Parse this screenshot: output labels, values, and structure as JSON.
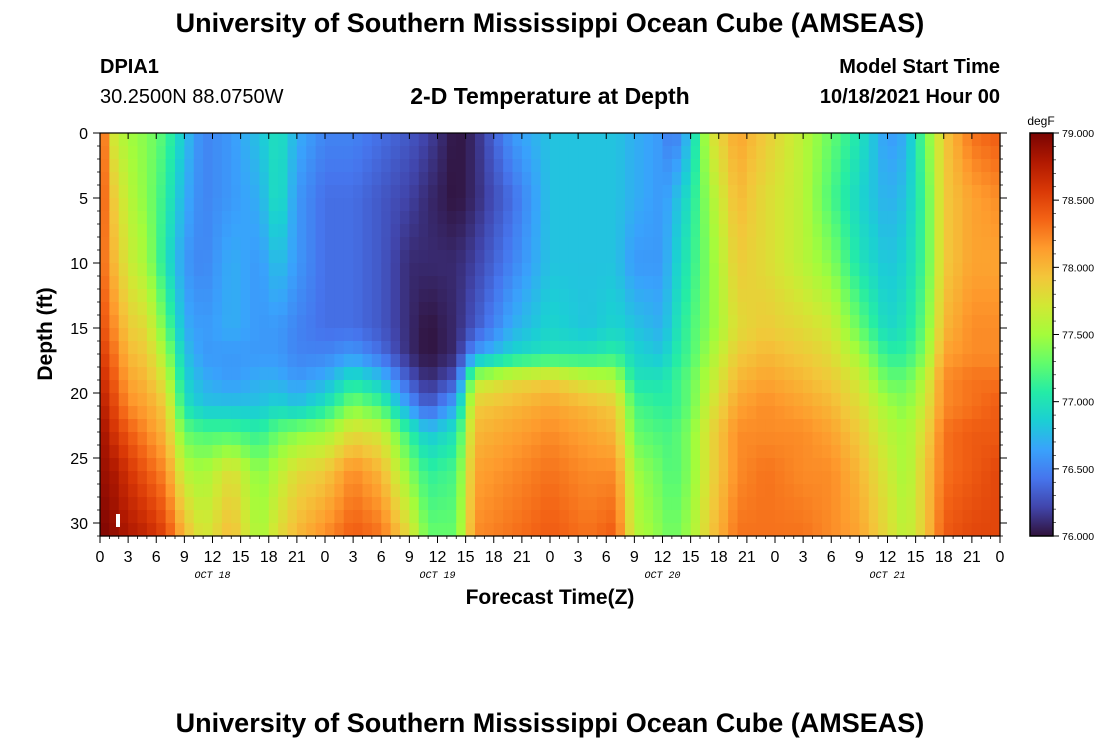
{
  "header": {
    "title": "University of Southern Mississippi Ocean Cube (AMSEAS)",
    "station_id": "DPIA1",
    "coordinates": "30.2500N  88.0750W",
    "subtitle": "2-D Temperature at Depth",
    "model_start_label": "Model Start Time",
    "model_start_value": "10/18/2021 Hour 00"
  },
  "footer": {
    "title": "University of Southern Mississippi Ocean Cube (AMSEAS)"
  },
  "chart_data": {
    "type": "heatmap",
    "title": "2-D Temperature at Depth",
    "xlabel": "Forecast Time(Z)",
    "ylabel": "Depth (ft)",
    "x_hours_range": [
      0,
      96
    ],
    "x_tick_step_hours": 3,
    "x_tick_labels": [
      "0",
      "3",
      "6",
      "9",
      "12",
      "15",
      "18",
      "21",
      "0",
      "3",
      "6",
      "9",
      "12",
      "15",
      "18",
      "21",
      "0",
      "3",
      "6",
      "9",
      "12",
      "15",
      "18",
      "21",
      "0",
      "3",
      "6",
      "9",
      "12",
      "15",
      "18",
      "21",
      "0"
    ],
    "date_labels": [
      {
        "label": "OCT 18",
        "hour": 12
      },
      {
        "label": "OCT 19",
        "hour": 36
      },
      {
        "label": "OCT 20",
        "hour": 60
      },
      {
        "label": "OCT 21",
        "hour": 84
      }
    ],
    "ylim": [
      0,
      31
    ],
    "y_inverted": true,
    "y_ticks": [
      0,
      5,
      10,
      15,
      20,
      25,
      30
    ],
    "colorbar": {
      "units": "degF",
      "min": 76.0,
      "max": 79.0,
      "tick_values": [
        76.0,
        76.5,
        77.0,
        77.5,
        78.0,
        78.5,
        79.0
      ],
      "tick_labels": [
        "76.000",
        "76.500",
        "77.000",
        "77.500",
        "78.000",
        "78.500",
        "79.000"
      ],
      "colors": [
        "#30123b",
        "#4145ab",
        "#4675ed",
        "#39a2fc",
        "#1bcfd4",
        "#24eca6",
        "#61fc6c",
        "#a4fc3b",
        "#d1e834",
        "#f3c63a",
        "#fe9b2d",
        "#f36315",
        "#d93806",
        "#b11901",
        "#7a0402"
      ]
    },
    "temperature_field": {
      "depths_ft": [
        0,
        5,
        10,
        15,
        17,
        19,
        21,
        23,
        26,
        31
      ],
      "rows": [
        {
          "hour": 0,
          "t": [
            78.5,
            78.5,
            78.4,
            78.5,
            78.6,
            78.7,
            78.8,
            78.9,
            78.9,
            79.0
          ]
        },
        {
          "hour": 1.5,
          "t": [
            77.7,
            77.9,
            78.0,
            78.2,
            78.3,
            78.4,
            78.5,
            78.6,
            78.8,
            78.9
          ]
        },
        {
          "hour": 3,
          "t": [
            77.5,
            77.6,
            77.7,
            77.9,
            78.0,
            78.1,
            78.2,
            78.4,
            78.6,
            78.8
          ]
        },
        {
          "hour": 5,
          "t": [
            77.4,
            77.4,
            77.5,
            77.8,
            77.9,
            78.0,
            78.1,
            78.2,
            78.4,
            78.7
          ]
        },
        {
          "hour": 7,
          "t": [
            77.2,
            77.1,
            77.0,
            77.3,
            77.5,
            77.7,
            77.9,
            78.0,
            78.2,
            78.5
          ]
        },
        {
          "hour": 9,
          "t": [
            76.8,
            76.7,
            76.6,
            76.7,
            76.8,
            76.9,
            77.0,
            77.3,
            77.6,
            78.0
          ]
        },
        {
          "hour": 11,
          "t": [
            76.5,
            76.5,
            76.5,
            76.6,
            76.6,
            76.7,
            76.8,
            77.2,
            77.5,
            77.7
          ]
        },
        {
          "hour": 14,
          "t": [
            76.6,
            76.6,
            76.7,
            76.7,
            76.6,
            76.6,
            76.8,
            77.2,
            77.8,
            78.0
          ]
        },
        {
          "hour": 17,
          "t": [
            76.8,
            76.7,
            76.6,
            76.6,
            76.6,
            76.7,
            76.8,
            77.1,
            77.4,
            77.5
          ]
        },
        {
          "hour": 19,
          "t": [
            77.0,
            77.0,
            76.8,
            76.6,
            76.6,
            76.7,
            76.9,
            77.3,
            77.6,
            77.8
          ]
        },
        {
          "hour": 21,
          "t": [
            76.7,
            76.6,
            76.6,
            76.5,
            76.5,
            76.6,
            76.8,
            77.4,
            77.8,
            78.0
          ]
        },
        {
          "hour": 24,
          "t": [
            76.5,
            76.4,
            76.4,
            76.4,
            76.5,
            76.7,
            77.0,
            77.5,
            77.9,
            78.2
          ]
        },
        {
          "hour": 27,
          "t": [
            76.5,
            76.4,
            76.4,
            76.4,
            76.6,
            77.0,
            77.4,
            77.8,
            78.2,
            78.4
          ]
        },
        {
          "hour": 30,
          "t": [
            76.4,
            76.3,
            76.3,
            76.3,
            76.4,
            76.8,
            77.2,
            77.7,
            78.0,
            78.3
          ]
        },
        {
          "hour": 33,
          "t": [
            76.3,
            76.2,
            76.1,
            76.1,
            76.1,
            76.3,
            76.6,
            77.1,
            77.4,
            77.8
          ]
        },
        {
          "hour": 35,
          "t": [
            76.2,
            76.1,
            76.1,
            76.0,
            76.0,
            76.1,
            76.3,
            76.8,
            77.1,
            77.3
          ]
        },
        {
          "hour": 38,
          "t": [
            76.0,
            76.0,
            76.1,
            76.1,
            76.1,
            76.3,
            76.7,
            77.0,
            77.2,
            77.3
          ]
        },
        {
          "hour": 40,
          "t": [
            76.1,
            76.1,
            76.2,
            76.3,
            76.6,
            77.6,
            77.9,
            78.0,
            78.1,
            78.2
          ]
        },
        {
          "hour": 44,
          "t": [
            76.6,
            76.4,
            76.5,
            76.7,
            76.9,
            77.8,
            78.0,
            78.1,
            78.2,
            78.3
          ]
        },
        {
          "hour": 48,
          "t": [
            76.8,
            76.8,
            76.8,
            76.9,
            77.0,
            77.9,
            78.1,
            78.2,
            78.3,
            78.4
          ]
        },
        {
          "hour": 52,
          "t": [
            76.8,
            76.8,
            76.8,
            76.8,
            77.0,
            77.7,
            78.0,
            78.1,
            78.2,
            78.3
          ]
        },
        {
          "hour": 55,
          "t": [
            76.8,
            76.8,
            76.8,
            76.9,
            77.1,
            77.6,
            77.9,
            78.0,
            78.2,
            78.4
          ]
        },
        {
          "hour": 57,
          "t": [
            76.7,
            76.7,
            76.6,
            76.8,
            76.9,
            77.0,
            77.2,
            77.3,
            77.5,
            77.6
          ]
        },
        {
          "hour": 60,
          "t": [
            76.6,
            76.6,
            76.6,
            76.7,
            76.8,
            77.0,
            77.1,
            77.2,
            77.3,
            77.4
          ]
        },
        {
          "hour": 61,
          "t": [
            76.4,
            76.7,
            76.8,
            76.9,
            77.0,
            77.1,
            77.1,
            77.2,
            77.2,
            77.3
          ]
        },
        {
          "hour": 63,
          "t": [
            76.8,
            77.0,
            77.1,
            77.2,
            77.2,
            77.3,
            77.3,
            77.4,
            77.4,
            77.5
          ]
        },
        {
          "hour": 65,
          "t": [
            77.7,
            77.5,
            77.4,
            77.4,
            77.5,
            77.6,
            77.7,
            77.8,
            77.8,
            77.9
          ]
        },
        {
          "hour": 68,
          "t": [
            78.1,
            78.0,
            77.9,
            77.8,
            77.9,
            78.0,
            78.1,
            78.2,
            78.2,
            78.3
          ]
        },
        {
          "hour": 71,
          "t": [
            77.9,
            77.8,
            77.8,
            77.9,
            78.0,
            78.1,
            78.2,
            78.2,
            78.3,
            78.3
          ]
        },
        {
          "hour": 75,
          "t": [
            77.6,
            77.6,
            77.6,
            77.8,
            77.9,
            78.0,
            78.1,
            78.2,
            78.2,
            78.3
          ]
        },
        {
          "hour": 78,
          "t": [
            77.3,
            77.2,
            77.4,
            77.7,
            77.8,
            77.9,
            78.0,
            78.1,
            78.2,
            78.2
          ]
        },
        {
          "hour": 81,
          "t": [
            77.0,
            76.9,
            77.0,
            77.3,
            77.5,
            77.7,
            77.8,
            77.9,
            78.0,
            78.1
          ]
        },
        {
          "hour": 84,
          "t": [
            76.6,
            76.7,
            76.8,
            76.9,
            77.1,
            77.3,
            77.5,
            77.6,
            77.7,
            77.8
          ]
        },
        {
          "hour": 86,
          "t": [
            76.7,
            76.8,
            76.9,
            77.0,
            77.1,
            77.3,
            77.4,
            77.5,
            77.5,
            77.6
          ]
        },
        {
          "hour": 88,
          "t": [
            77.3,
            77.2,
            77.2,
            77.3,
            77.4,
            77.6,
            77.7,
            77.8,
            77.9,
            77.9
          ]
        },
        {
          "hour": 90,
          "t": [
            77.9,
            77.9,
            77.9,
            78.0,
            78.1,
            78.2,
            78.2,
            78.3,
            78.3,
            78.4
          ]
        },
        {
          "hour": 93,
          "t": [
            78.3,
            78.1,
            78.1,
            78.2,
            78.2,
            78.3,
            78.3,
            78.4,
            78.4,
            78.5
          ]
        },
        {
          "hour": 96,
          "t": [
            78.4,
            78.2,
            78.1,
            78.2,
            78.2,
            78.3,
            78.4,
            78.4,
            78.5,
            78.5
          ]
        }
      ]
    }
  }
}
